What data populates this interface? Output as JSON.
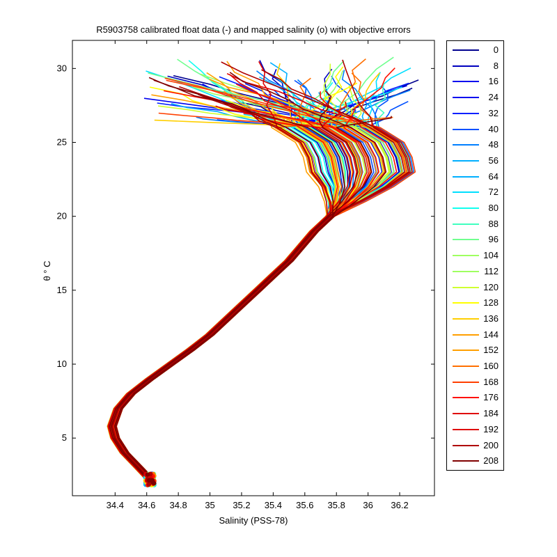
{
  "chart_data": {
    "type": "line",
    "title": "R5903758 calibrated float data (-) and mapped salinity (o) with objective errors",
    "xlabel": "Salinity (PSS-78)",
    "ylabel": "θ ° C",
    "xlim": [
      34.13,
      36.42
    ],
    "ylim": [
      1.1,
      31.9
    ],
    "x_ticks": [
      "34.4",
      "34.6",
      "34.8",
      "35",
      "35.2",
      "35.4",
      "35.6",
      "35.8",
      "36",
      "36.2"
    ],
    "y_ticks": [
      "5",
      "10",
      "15",
      "20",
      "25",
      "30"
    ],
    "legend_placement": "right-outside",
    "legend_labels": [
      "0",
      "8",
      "16",
      "24",
      "32",
      "40",
      "48",
      "56",
      "64",
      "72",
      "80",
      "88",
      "96",
      "104",
      "112",
      "120",
      "128",
      "136",
      "144",
      "152",
      "160",
      "168",
      "176",
      "184",
      "192",
      "200",
      "208"
    ],
    "colors": [
      "#00008f",
      "#0000bf",
      "#0000ef",
      "#001fff",
      "#004fff",
      "#007fff",
      "#00afff",
      "#00dfff",
      "#10ffef",
      "#40ffbf",
      "#70ff8f",
      "#9fff60",
      "#cfff30",
      "#ffff00",
      "#ffcf00",
      "#ff9f00",
      "#ff6f00",
      "#ff3f00",
      "#ff1000",
      "#df0000",
      "#af0000",
      "#800000"
    ],
    "series_profile": {
      "shared_deep_profile": [
        [
          34.62,
          2.2
        ],
        [
          34.55,
          3.0
        ],
        [
          34.46,
          4.0
        ],
        [
          34.4,
          5.0
        ],
        [
          34.38,
          5.8
        ],
        [
          34.42,
          7.0
        ],
        [
          34.5,
          8.0
        ],
        [
          34.62,
          9.0
        ],
        [
          34.75,
          10.0
        ],
        [
          34.88,
          11.0
        ],
        [
          35.0,
          12.0
        ],
        [
          35.1,
          13.0
        ],
        [
          35.2,
          14.0
        ],
        [
          35.3,
          15.0
        ],
        [
          35.4,
          16.0
        ],
        [
          35.5,
          17.0
        ],
        [
          35.58,
          18.0
        ],
        [
          35.66,
          19.0
        ],
        [
          35.76,
          20.0
        ],
        [
          35.84,
          21.0
        ],
        [
          35.9,
          22.0
        ],
        [
          35.92,
          23.0
        ],
        [
          35.9,
          24.0
        ],
        [
          35.85,
          25.0
        ],
        [
          35.7,
          26.0
        ],
        [
          35.4,
          27.0
        ],
        [
          35.0,
          28.0
        ]
      ],
      "surface_salinity_range": [
        34.6,
        36.3
      ],
      "surface_temperature_range": [
        26.5,
        30.8
      ],
      "subsurface_salinity_max_range": [
        35.6,
        36.3
      ]
    }
  }
}
